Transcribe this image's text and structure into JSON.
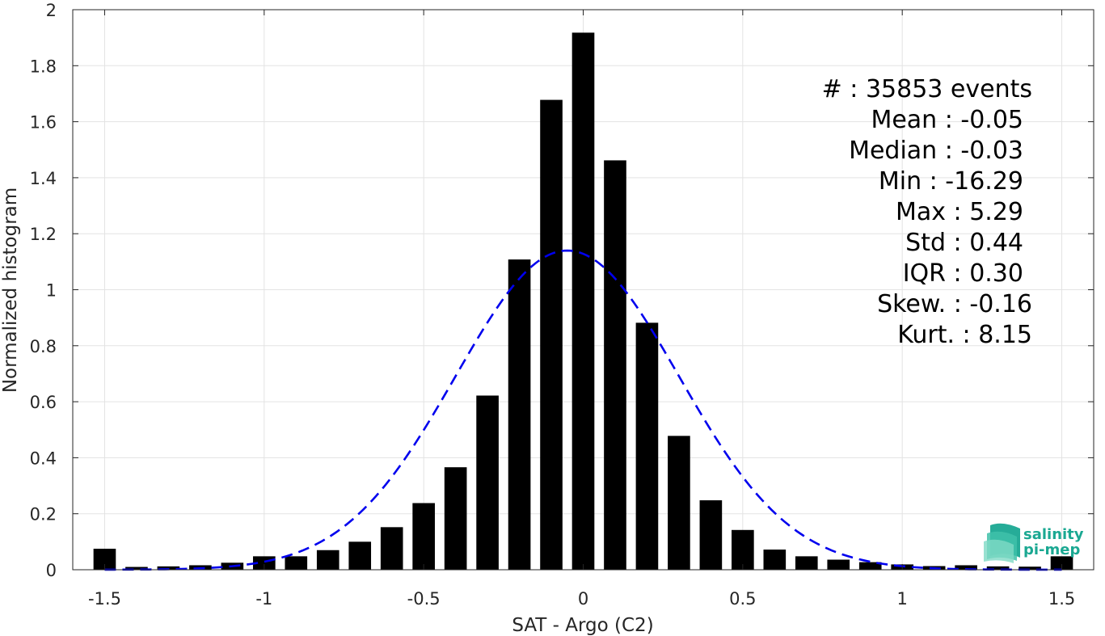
{
  "chart_data": {
    "type": "bar",
    "xlabel": "SAT - Argo (C2)",
    "ylabel": "Normalized histogram",
    "xlim": [
      -1.6,
      1.6
    ],
    "ylim": [
      0,
      2
    ],
    "grid": true,
    "x_ticks": [
      -1.5,
      -1,
      -0.5,
      0,
      0.5,
      1,
      1.5
    ],
    "x_tick_labels": [
      "-1.5",
      "-1",
      "-0.5",
      "0",
      "0.5",
      "1",
      "1.5"
    ],
    "y_ticks": [
      0,
      0.2,
      0.4,
      0.6,
      0.8,
      1,
      1.2,
      1.4,
      1.6,
      1.8,
      2
    ],
    "y_tick_labels": [
      "0",
      "0.2",
      "0.4",
      "0.6",
      "0.8",
      "1",
      "1.2",
      "1.4",
      "1.6",
      "1.8",
      "2"
    ],
    "bar_width": 0.07,
    "bar_color": "#000000",
    "x": [
      -1.5,
      -1.4,
      -1.3,
      -1.2,
      -1.1,
      -1.0,
      -0.9,
      -0.8,
      -0.7,
      -0.6,
      -0.5,
      -0.4,
      -0.3,
      -0.2,
      -0.1,
      0.0,
      0.1,
      0.2,
      0.3,
      0.4,
      0.5,
      0.6,
      0.7,
      0.8,
      0.9,
      1.0,
      1.1,
      1.2,
      1.3,
      1.4,
      1.5
    ],
    "values": [
      0.075,
      0.01,
      0.012,
      0.016,
      0.025,
      0.048,
      0.048,
      0.07,
      0.1,
      0.152,
      0.238,
      0.366,
      0.622,
      1.108,
      1.678,
      1.918,
      1.462,
      0.882,
      0.478,
      0.248,
      0.142,
      0.072,
      0.048,
      0.036,
      0.027,
      0.019,
      0.013,
      0.016,
      0.012,
      0.011,
      0.048
    ],
    "fit": {
      "type": "gaussian",
      "mean": -0.05,
      "std": 0.35,
      "color": "#0000ee",
      "style": "dashed"
    },
    "annotations": [
      "#  : 35853 events",
      "Mean : -0.05",
      "Median : -0.03",
      "Min : -16.29",
      "Max : 5.29",
      "Std : 0.44",
      "IQR : 0.30",
      "Skew. : -0.16",
      "Kurt. : 8.15"
    ]
  },
  "logo": {
    "line1": "salinity",
    "line2": "pi-mep",
    "color": "#1aa892"
  }
}
